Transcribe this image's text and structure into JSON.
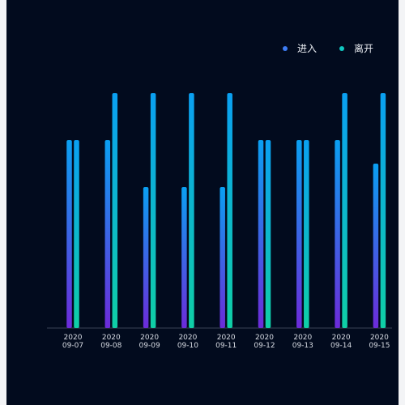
{
  "chart_data": {
    "type": "bar",
    "categories": [
      "2020\n09-07",
      "2020\n09-08",
      "2020\n09-09",
      "2020\n09-10",
      "2020\n09-11",
      "2020\n09-12",
      "2020\n09-13",
      "2020\n09-14",
      "2020\n09-15"
    ],
    "series": [
      {
        "name": "进入",
        "values": [
          4,
          4,
          3,
          3,
          3,
          4,
          4,
          4,
          3.5
        ]
      },
      {
        "name": "离开",
        "values": [
          4,
          5,
          5,
          5,
          5,
          4,
          4,
          5,
          5
        ]
      }
    ],
    "ylim": [
      0,
      6.5
    ],
    "legend_position": "top-right",
    "grid": false,
    "colors": {
      "enter_top": "#0aa0f2",
      "enter_bottom": "#6c2bd9",
      "leave_top": "#0aa0f2",
      "leave_bottom": "#0fcfa6",
      "legend_enter": "#3d7cf5",
      "legend_leave": "#10c8c2"
    }
  }
}
